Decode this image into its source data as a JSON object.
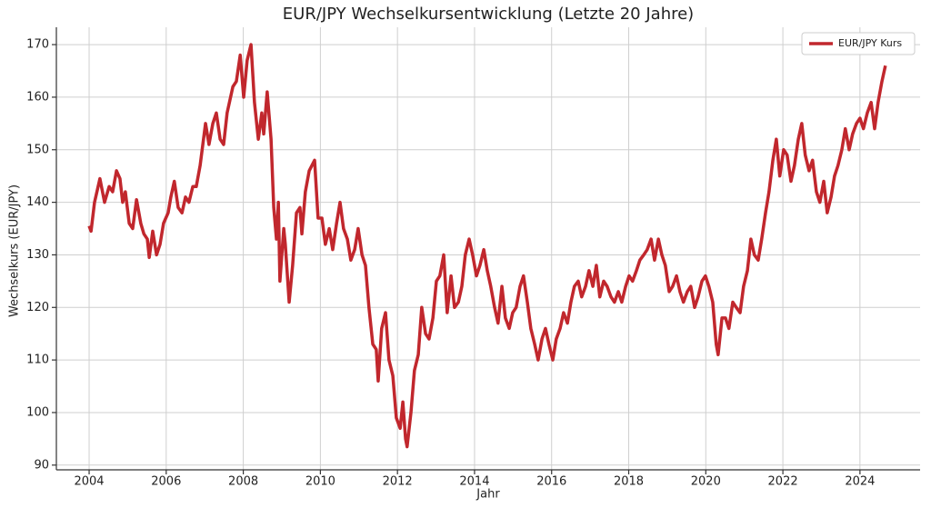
{
  "chart_data": {
    "type": "line",
    "title": "EUR/JPY Wechselkursentwicklung (Letzte 20 Jahre)",
    "xlabel": "Jahr",
    "ylabel": "Wechselkurs (EUR/JPY)",
    "x": [
      2004.0,
      2004.05,
      2004.14,
      2004.28,
      2004.4,
      2004.52,
      2004.61,
      2004.71,
      2004.8,
      2004.87,
      2004.94,
      2005.04,
      2005.13,
      2005.23,
      2005.34,
      2005.42,
      2005.51,
      2005.56,
      2005.65,
      2005.75,
      2005.84,
      2005.93,
      2006.05,
      2006.12,
      2006.21,
      2006.31,
      2006.41,
      2006.5,
      2006.59,
      2006.69,
      2006.78,
      2006.88,
      2007.02,
      2007.11,
      2007.21,
      2007.3,
      2007.4,
      2007.49,
      2007.58,
      2007.73,
      2007.82,
      2007.92,
      2008.01,
      2008.1,
      2008.2,
      2008.29,
      2008.39,
      2008.48,
      2008.53,
      2008.62,
      2008.72,
      2008.79,
      2008.86,
      2008.91,
      2008.95,
      2009.05,
      2009.09,
      2009.19,
      2009.28,
      2009.38,
      2009.47,
      2009.52,
      2009.61,
      2009.71,
      2009.85,
      2009.94,
      2010.04,
      2010.13,
      2010.23,
      2010.32,
      2010.42,
      2010.51,
      2010.6,
      2010.7,
      2010.79,
      2010.89,
      2010.98,
      2011.08,
      2011.17,
      2011.26,
      2011.36,
      2011.45,
      2011.5,
      2011.59,
      2011.69,
      2011.78,
      2011.88,
      2011.97,
      2012.07,
      2012.14,
      2012.21,
      2012.25,
      2012.35,
      2012.44,
      2012.54,
      2012.63,
      2012.73,
      2012.82,
      2012.92,
      2013.01,
      2013.1,
      2013.2,
      2013.29,
      2013.39,
      2013.48,
      2013.58,
      2013.67,
      2013.76,
      2013.86,
      2013.95,
      2014.05,
      2014.14,
      2014.24,
      2014.33,
      2014.42,
      2014.52,
      2014.61,
      2014.71,
      2014.8,
      2014.9,
      2014.99,
      2015.08,
      2015.18,
      2015.27,
      2015.37,
      2015.46,
      2015.56,
      2015.65,
      2015.75,
      2015.84,
      2015.93,
      2016.03,
      2016.12,
      2016.22,
      2016.31,
      2016.41,
      2016.5,
      2016.59,
      2016.69,
      2016.78,
      2016.88,
      2016.97,
      2017.07,
      2017.16,
      2017.25,
      2017.35,
      2017.44,
      2017.54,
      2017.63,
      2017.73,
      2017.82,
      2017.92,
      2018.01,
      2018.1,
      2018.2,
      2018.29,
      2018.39,
      2018.48,
      2018.58,
      2018.67,
      2018.77,
      2018.86,
      2018.95,
      2019.05,
      2019.14,
      2019.24,
      2019.33,
      2019.42,
      2019.52,
      2019.61,
      2019.71,
      2019.8,
      2019.9,
      2019.99,
      2020.08,
      2020.18,
      2020.27,
      2020.32,
      2020.42,
      2020.51,
      2020.6,
      2020.7,
      2020.79,
      2020.89,
      2020.98,
      2021.08,
      2021.17,
      2021.26,
      2021.36,
      2021.45,
      2021.55,
      2021.64,
      2021.74,
      2021.83,
      2021.92,
      2022.02,
      2022.11,
      2022.21,
      2022.3,
      2022.4,
      2022.49,
      2022.58,
      2022.68,
      2022.77,
      2022.87,
      2022.96,
      2023.06,
      2023.15,
      2023.25,
      2023.34,
      2023.43,
      2023.53,
      2023.62,
      2023.72,
      2023.81,
      2023.91,
      2024.0,
      2024.09,
      2024.19,
      2024.29,
      2024.38,
      2024.47,
      2024.57,
      2024.66
    ],
    "series": [
      {
        "name": "EUR/JPY Kurs",
        "color": "#c1272d",
        "values": [
          135.5,
          134.5,
          140,
          144.5,
          140,
          143,
          142,
          146,
          144.5,
          140,
          142,
          136,
          135,
          140.5,
          136,
          134,
          133,
          129.5,
          134.5,
          130,
          132,
          136,
          138,
          141,
          144,
          139,
          138,
          141,
          140,
          143,
          143,
          147,
          155,
          151,
          155,
          157,
          152,
          151,
          157,
          162,
          163,
          168,
          160,
          167,
          170,
          159,
          152,
          157,
          153,
          161,
          152,
          139,
          133,
          140,
          125,
          135,
          132,
          121,
          128,
          138,
          139,
          134,
          142,
          146,
          148,
          137,
          137,
          132,
          135,
          131,
          136,
          140,
          135,
          133,
          129,
          131,
          135,
          130,
          128,
          120,
          113,
          112,
          106,
          116,
          119,
          110,
          107,
          99,
          97,
          102,
          95,
          93.5,
          100,
          108,
          111,
          120,
          115,
          114,
          118,
          125,
          126,
          130,
          119,
          126,
          120,
          121,
          124,
          130,
          133,
          130,
          126,
          128,
          131,
          127,
          124,
          120,
          117,
          124,
          118,
          116,
          119,
          120,
          124,
          126,
          121,
          116,
          113,
          110,
          114,
          116,
          113,
          110,
          114,
          116,
          119,
          117,
          121,
          124,
          125,
          122,
          124,
          127,
          124,
          128,
          122,
          125,
          124,
          122,
          121,
          123,
          121,
          124,
          126,
          125,
          127,
          129,
          130,
          131,
          133,
          129,
          133,
          130,
          128,
          123,
          124,
          126,
          123,
          121,
          123,
          124,
          120,
          122,
          125,
          126,
          124,
          121,
          113,
          111,
          118,
          118,
          116,
          121,
          120,
          119,
          124,
          127,
          133,
          130,
          129,
          133,
          138,
          142,
          148,
          152,
          145,
          150,
          149,
          144,
          147,
          152,
          155,
          149,
          146,
          148,
          142,
          140,
          144,
          138,
          141,
          145,
          147,
          150,
          154,
          150,
          153,
          155,
          156,
          154,
          157,
          159,
          154,
          159,
          163,
          166
        ]
      }
    ],
    "xlim": [
      2003.15,
      2025.56
    ],
    "ylim": [
      89.1,
      173.3
    ],
    "xticks": [
      2004,
      2006,
      2008,
      2010,
      2012,
      2014,
      2016,
      2018,
      2020,
      2022,
      2024
    ],
    "yticks": [
      90,
      100,
      110,
      120,
      130,
      140,
      150,
      160,
      170
    ],
    "grid": true,
    "legend": "upper right"
  }
}
